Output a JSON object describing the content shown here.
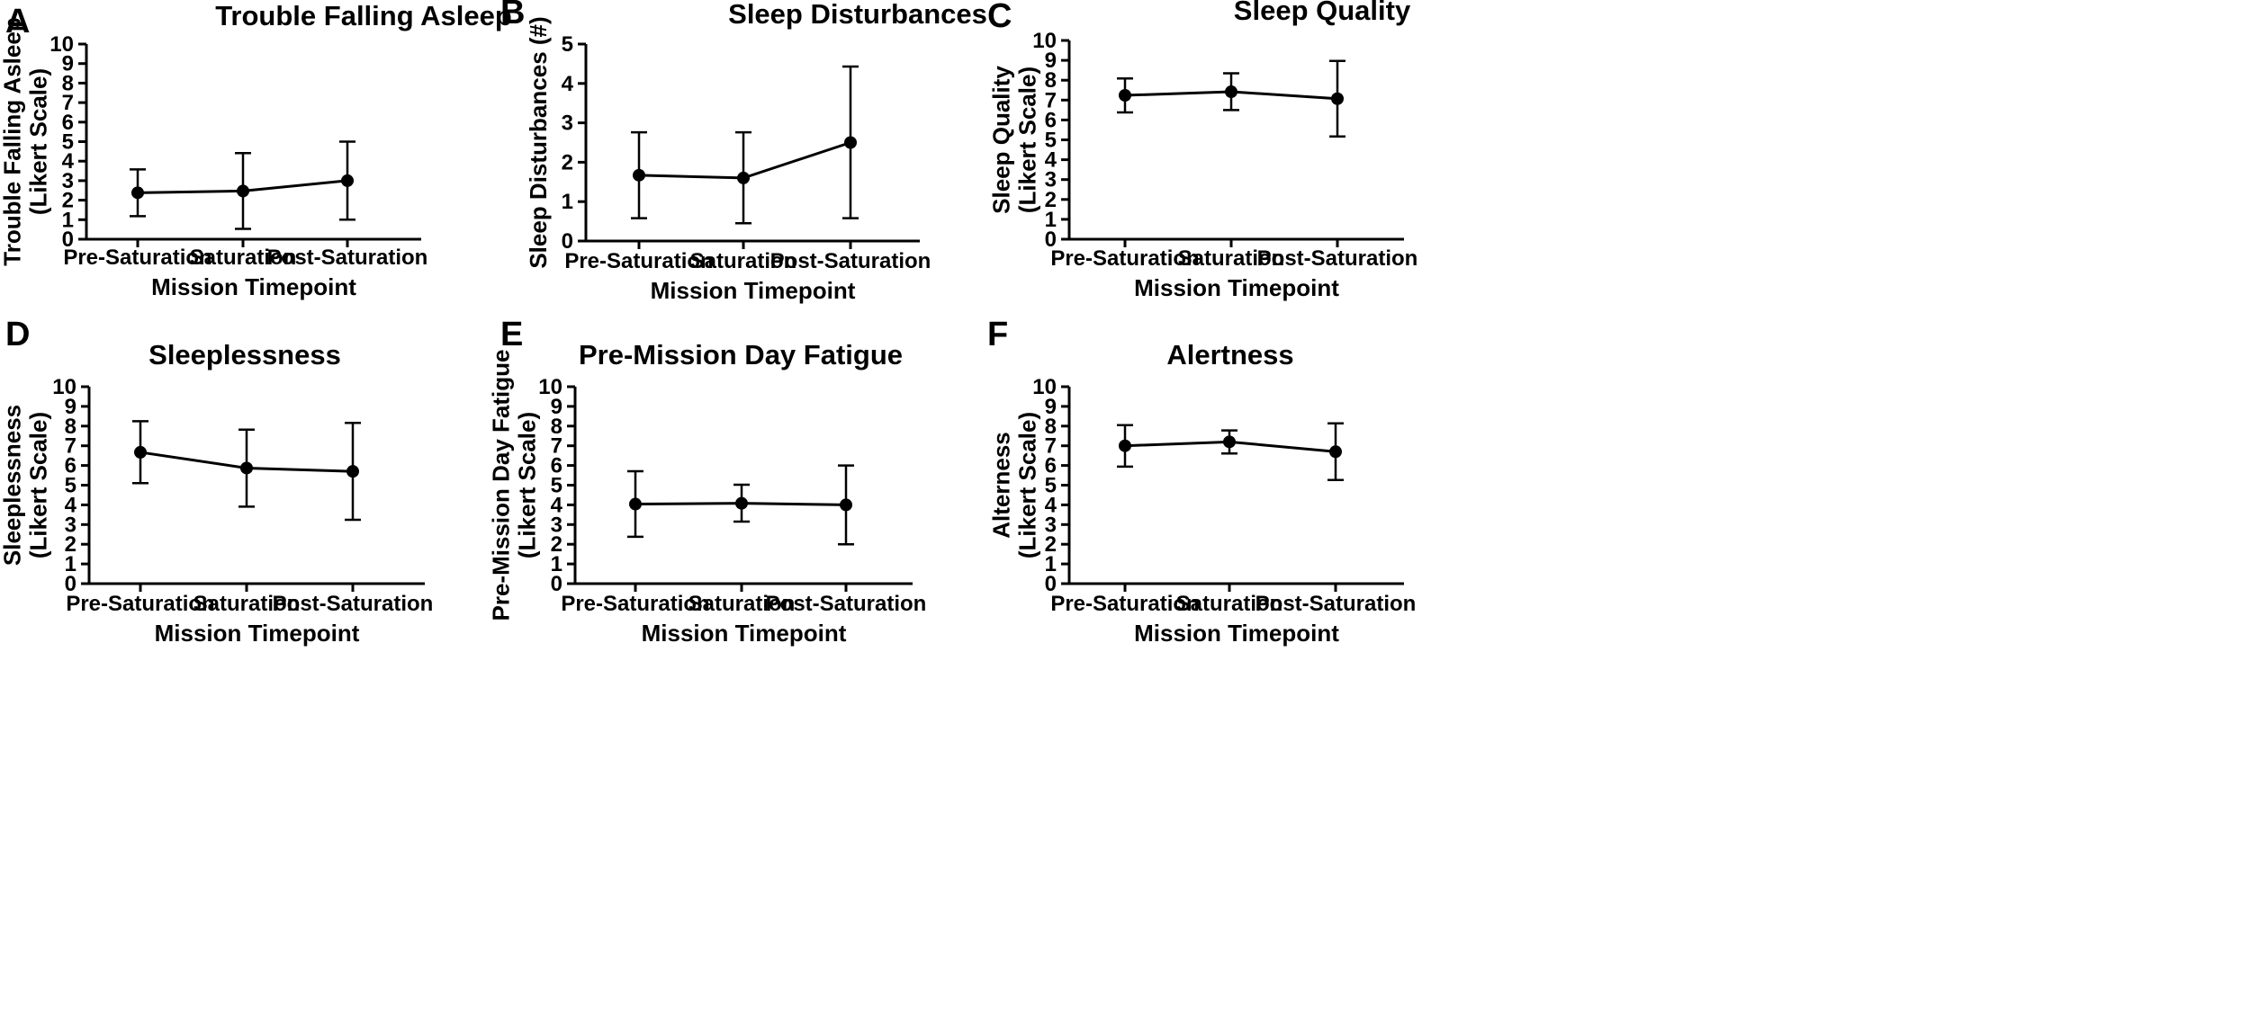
{
  "chart_data": [
    {
      "panel": "A",
      "type": "line",
      "title": "Trouble Falling Asleep",
      "xlabel": "Mission Timepoint",
      "ylabel": [
        "Trouble Falling Asleep",
        "(Likert Scale)"
      ],
      "categories": [
        "Pre-Saturation",
        "Saturation",
        "Post-Saturation"
      ],
      "values": [
        2.38,
        2.47,
        3.0
      ],
      "error_low": [
        1.18,
        0.53,
        1.0
      ],
      "error_high": [
        3.58,
        4.41,
        5.0
      ],
      "ylim": [
        0,
        10
      ],
      "yticks": [
        0,
        1,
        2,
        3,
        4,
        5,
        6,
        7,
        8,
        9,
        10
      ]
    },
    {
      "panel": "B",
      "type": "line",
      "title": "Sleep Disturbances",
      "xlabel": "Mission Timepoint",
      "ylabel": [
        "Sleep Disturbances (#)"
      ],
      "categories": [
        "Pre-Saturation",
        "Saturation",
        "Post-Saturation"
      ],
      "values": [
        1.67,
        1.6,
        2.5
      ],
      "error_low": [
        0.58,
        0.45,
        0.58
      ],
      "error_high": [
        2.76,
        2.76,
        4.43
      ],
      "ylim": [
        0,
        5
      ],
      "yticks": [
        0,
        1,
        2,
        3,
        4,
        5
      ]
    },
    {
      "panel": "C",
      "type": "line",
      "title": "Sleep Quality",
      "xlabel": "Mission Timepoint",
      "ylabel": [
        "Sleep Quality",
        "(Likert Scale)"
      ],
      "categories": [
        "Pre-Saturation",
        "Saturation",
        "Post-Saturation"
      ],
      "values": [
        7.24,
        7.42,
        7.07
      ],
      "error_low": [
        6.38,
        6.5,
        5.17
      ],
      "error_high": [
        8.09,
        8.35,
        8.97
      ],
      "ylim": [
        0,
        10
      ],
      "yticks": [
        0,
        1,
        2,
        3,
        4,
        5,
        6,
        7,
        8,
        9,
        10
      ]
    },
    {
      "panel": "D",
      "type": "line",
      "title": "Sleeplessness",
      "xlabel": "Mission Timepoint",
      "ylabel": [
        "Sleeplessness",
        "(Likert Scale)"
      ],
      "categories": [
        "Pre-Saturation",
        "Saturation",
        "Post-Saturation"
      ],
      "values": [
        6.67,
        5.87,
        5.7
      ],
      "error_low": [
        5.1,
        3.91,
        3.24
      ],
      "error_high": [
        8.25,
        7.82,
        8.16
      ],
      "ylim": [
        0,
        10
      ],
      "yticks": [
        0,
        1,
        2,
        3,
        4,
        5,
        6,
        7,
        8,
        9,
        10
      ]
    },
    {
      "panel": "E",
      "type": "line",
      "title": "Pre-Mission Day Fatigue",
      "xlabel": "Mission Timepoint",
      "ylabel": [
        "Pre-Mission Day Fatigue",
        "(Likert Scale)"
      ],
      "categories": [
        "Pre-Saturation",
        "Saturation",
        "Post-Saturation"
      ],
      "values": [
        4.04,
        4.08,
        4.0
      ],
      "error_low": [
        2.38,
        3.15,
        2.0
      ],
      "error_high": [
        5.71,
        5.02,
        6.0
      ],
      "ylim": [
        0,
        10
      ],
      "yticks": [
        0,
        1,
        2,
        3,
        4,
        5,
        6,
        7,
        8,
        9,
        10
      ]
    },
    {
      "panel": "F",
      "type": "line",
      "title": "Alertness",
      "xlabel": "Mission Timepoint",
      "ylabel": [
        "Alterness",
        "(Likert Scale)"
      ],
      "categories": [
        "Pre-Saturation",
        "Saturation",
        "Post-Saturation"
      ],
      "values": [
        7.0,
        7.2,
        6.7
      ],
      "error_low": [
        5.94,
        6.61,
        5.26
      ],
      "error_high": [
        8.05,
        7.78,
        8.14
      ],
      "ylim": [
        0,
        10
      ],
      "yticks": [
        0,
        1,
        2,
        3,
        4,
        5,
        6,
        7,
        8,
        9,
        10
      ]
    }
  ]
}
